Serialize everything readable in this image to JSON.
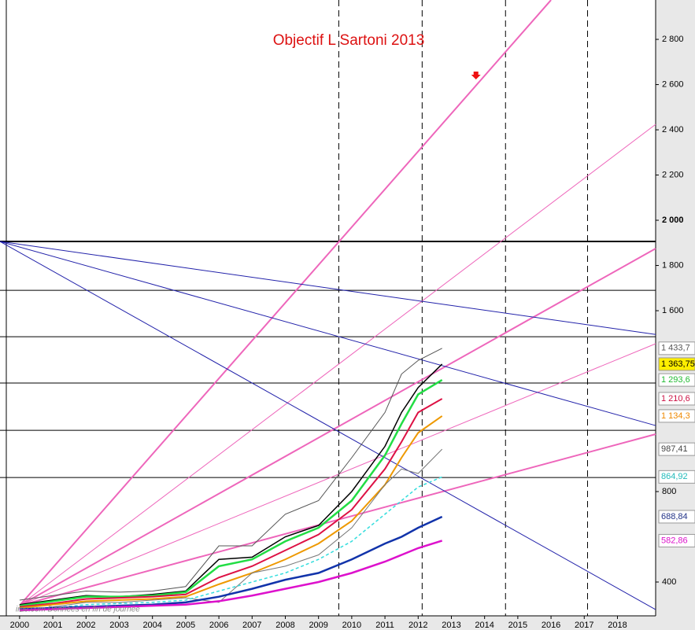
{
  "chart_data": {
    "type": "line",
    "title": "Objectif L Sartoni 2013",
    "watermark": "ime.com  Données en fin de journée",
    "xlim": [
      1999.41,
      2019.15
    ],
    "ylim": [
      250.4,
      2974.1
    ],
    "xticks": [
      2000,
      2001,
      2002,
      2003,
      2004,
      2005,
      2006,
      2007,
      2008,
      2009,
      2010,
      2011,
      2012,
      2013,
      2014,
      2015,
      2016,
      2017,
      2018
    ],
    "yticks": [
      400,
      800,
      {
        "value": 1600,
        "label": "1 600"
      },
      {
        "value": 1800,
        "label": "1 800"
      },
      {
        "value": 2000,
        "label": "2 000"
      },
      {
        "value": 2200,
        "label": "2 200"
      },
      {
        "value": 2400,
        "label": "2 400"
      },
      {
        "value": 2600,
        "label": "2 600"
      },
      {
        "value": 2800,
        "label": "2 800"
      }
    ],
    "x": [
      2000,
      2001,
      2002,
      2003,
      2004,
      2005,
      2006,
      2007,
      2008,
      2009,
      2010,
      2011,
      2011.5,
      2012,
      2012.72
    ],
    "series": [
      {
        "color": "#555555",
        "style": "thin",
        "values": [
          320,
          340,
          360,
          355,
          360,
          380,
          560,
          560,
          700,
          760,
          950,
          1150,
          1320,
          1380,
          1433.7
        ],
        "value_labels": [
          "1 433,7"
        ],
        "label_bg": "#ffffff",
        "label_color": "#555555"
      },
      {
        "color": "#000000",
        "style": "price",
        "values": [
          300,
          320,
          340,
          335,
          345,
          360,
          500,
          510,
          600,
          650,
          800,
          1000,
          1150,
          1260,
          1363.75
        ],
        "value_labels": [
          "1 363,75"
        ],
        "label_bg": "#ffee00",
        "label_color": "#000000"
      },
      {
        "color": "#22dd44",
        "style": "thick",
        "values": [
          295,
          315,
          335,
          335,
          340,
          355,
          470,
          500,
          580,
          640,
          760,
          960,
          1100,
          1230,
          1293.6
        ],
        "value_labels": [
          "1 293,6"
        ],
        "label_bg": "#ffffff",
        "label_color": "#22bb33"
      },
      {
        "color": "#dd1144",
        "style": "mid",
        "values": [
          290,
          305,
          325,
          330,
          335,
          345,
          420,
          470,
          540,
          610,
          720,
          900,
          1020,
          1150,
          1210.6
        ],
        "value_labels": [
          "1 210,6"
        ],
        "label_bg": "#ffffff",
        "label_color": "#cc1144"
      },
      {
        "color": "#ee9900",
        "style": "mid",
        "values": [
          285,
          300,
          315,
          320,
          325,
          335,
          390,
          440,
          500,
          570,
          670,
          830,
          950,
          1060,
          1134.3
        ],
        "value_labels": [
          "1 134,3"
        ],
        "label_bg": "#ffffff",
        "label_color": "#ee8800"
      },
      {
        "color": "#777777",
        "style": "thin",
        "values": [
          270,
          290,
          310,
          310,
          320,
          330,
          310,
          440,
          470,
          520,
          640,
          830,
          900,
          880,
          987.41
        ],
        "value_labels": [
          "987,41"
        ],
        "label_bg": "#ffffff",
        "label_color": "#444444"
      },
      {
        "color": "#33dddd",
        "style": "dashed",
        "values": [
          275,
          285,
          300,
          305,
          310,
          320,
          360,
          400,
          440,
          500,
          580,
          700,
          760,
          820,
          864.92
        ],
        "value_labels": [
          "864,92"
        ],
        "label_bg": "#ffffff",
        "label_color": "#22bbbb"
      },
      {
        "color": "#1133aa",
        "style": "thick",
        "values": [
          280,
          285,
          290,
          295,
          300,
          310,
          335,
          370,
          410,
          440,
          500,
          570,
          600,
          640,
          688.84
        ],
        "value_labels": [
          "688,84"
        ],
        "label_bg": "#ffffff",
        "label_color": "#223388"
      },
      {
        "color": "#dd11cc",
        "style": "thick",
        "values": [
          275,
          280,
          285,
          290,
          295,
          300,
          315,
          340,
          370,
          400,
          440,
          490,
          520,
          550,
          582.86
        ],
        "value_labels": [
          "582,86"
        ],
        "label_bg": "#ffffff",
        "label_color": "#dd11cc"
      }
    ],
    "hlines": [
      1906,
      1690,
      1485,
      1280,
      1071,
      862
    ],
    "vlines": [
      2009.61,
      2012.12,
      2014.63,
      2017.1
    ],
    "fan_lines": [
      {
        "color": "#ee66bb",
        "style": "thick",
        "from": [
          2000,
          296
        ],
        "to": [
          2016,
          2974
        ]
      },
      {
        "color": "#ee66bb",
        "style": "thin",
        "from": [
          2000,
          296
        ],
        "to": [
          2019.15,
          2424
        ]
      },
      {
        "color": "#ee66bb",
        "style": "thick",
        "from": [
          2000,
          296
        ],
        "to": [
          2019.15,
          1875
        ]
      },
      {
        "color": "#ee66bb",
        "style": "thin",
        "from": [
          2000,
          296
        ],
        "to": [
          2019.15,
          1454
        ]
      },
      {
        "color": "#ee66bb",
        "style": "thick",
        "from": [
          2000,
          296
        ],
        "to": [
          2019.15,
          1054
        ]
      },
      {
        "color": "#2222aa",
        "style": "thin",
        "from": [
          1999.41,
          1906
        ],
        "to": [
          2019.15,
          1495
        ]
      },
      {
        "color": "#2222aa",
        "style": "thin",
        "from": [
          1999.41,
          1906
        ],
        "to": [
          2019.15,
          1092
        ]
      },
      {
        "color": "#2222aa",
        "style": "thin",
        "from": [
          1999.41,
          1906
        ],
        "to": [
          2019.15,
          278
        ]
      }
    ],
    "marker": {
      "color": "#ee1111",
      "point": [
        2013.74,
        2633
      ]
    }
  }
}
